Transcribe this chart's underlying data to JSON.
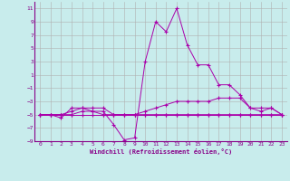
{
  "xlabel": "Windchill (Refroidissement éolien,°C)",
  "background_color": "#c8ecec",
  "grid_color": "#b0b0b0",
  "line_color": "#aa00aa",
  "xlim": [
    -0.5,
    23.5
  ],
  "ylim": [
    -9,
    12
  ],
  "yticks": [
    -9,
    -7,
    -5,
    -3,
    -1,
    1,
    3,
    5,
    7,
    9,
    11
  ],
  "xticks": [
    0,
    1,
    2,
    3,
    4,
    5,
    6,
    7,
    8,
    9,
    10,
    11,
    12,
    13,
    14,
    15,
    16,
    17,
    18,
    19,
    20,
    21,
    22,
    23
  ],
  "series": [
    {
      "x": [
        0,
        1,
        2,
        3,
        4,
        5,
        6,
        7,
        8,
        9,
        10,
        11,
        12,
        13,
        14,
        15,
        16,
        17,
        18,
        19,
        20,
        21,
        22,
        23
      ],
      "y": [
        -5,
        -5,
        -5.5,
        -4,
        -4,
        -4.5,
        -4.5,
        -6.5,
        -8.8,
        -8.5,
        3,
        9,
        7.5,
        11,
        5.5,
        2.5,
        2.5,
        -0.5,
        -0.5,
        -2,
        -4,
        -4,
        -4,
        -5
      ]
    },
    {
      "x": [
        0,
        1,
        2,
        3,
        4,
        5,
        6,
        7,
        8,
        9,
        10,
        11,
        12,
        13,
        14,
        15,
        16,
        17,
        18,
        19,
        20,
        21,
        22,
        23
      ],
      "y": [
        -5,
        -5,
        -5,
        -5,
        -4.5,
        -4.5,
        -5,
        -5,
        -5,
        -5,
        -4.5,
        -4,
        -3.5,
        -3,
        -3,
        -3,
        -3,
        -2.5,
        -2.5,
        -2.5,
        -4,
        -4.5,
        -4,
        -5
      ]
    },
    {
      "x": [
        0,
        1,
        2,
        3,
        4,
        5,
        6,
        7,
        8,
        9,
        10,
        11,
        12,
        13,
        14,
        15,
        16,
        17,
        18,
        19,
        20,
        21,
        22,
        23
      ],
      "y": [
        -5,
        -5,
        -5,
        -4.5,
        -4,
        -4,
        -4,
        -5,
        -5,
        -5,
        -5,
        -5,
        -5,
        -5,
        -5,
        -5,
        -5,
        -5,
        -5,
        -5,
        -5,
        -5,
        -5,
        -5
      ]
    },
    {
      "x": [
        0,
        1,
        2,
        3,
        4,
        5,
        6,
        7,
        8,
        9,
        10,
        11,
        12,
        13,
        14,
        15,
        16,
        17,
        18,
        19,
        20,
        21,
        22,
        23
      ],
      "y": [
        -5,
        -5,
        -5,
        -5,
        -5,
        -5,
        -5,
        -5,
        -5,
        -5,
        -5,
        -5,
        -5,
        -5,
        -5,
        -5,
        -5,
        -5,
        -5,
        -5,
        -5,
        -5,
        -5,
        -5
      ]
    }
  ]
}
